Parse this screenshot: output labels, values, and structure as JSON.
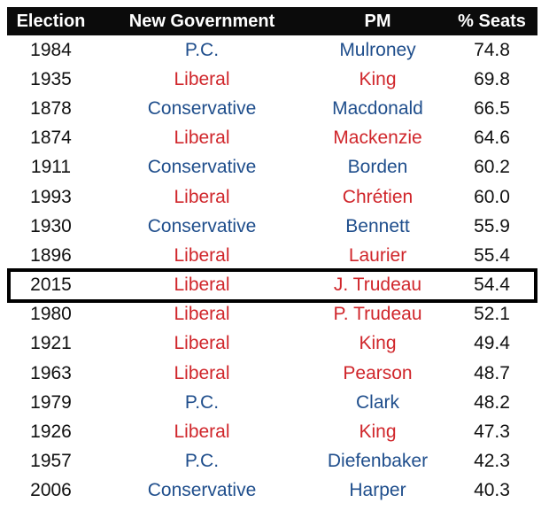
{
  "colors": {
    "liberal": "#d0262b",
    "conservative": "#1f4e8c",
    "header_bg": "#0b0b0b"
  },
  "headers": [
    "Election",
    "New Government",
    "PM",
    "% Seats"
  ],
  "rows": [
    {
      "year": "1984",
      "government": "P.C.",
      "pm": "Mulroney",
      "seats": "74.8",
      "party": "blue"
    },
    {
      "year": "1935",
      "government": "Liberal",
      "pm": "King",
      "seats": "69.8",
      "party": "red"
    },
    {
      "year": "1878",
      "government": "Conservative",
      "pm": "Macdonald",
      "seats": "66.5",
      "party": "blue"
    },
    {
      "year": "1874",
      "government": "Liberal",
      "pm": "Mackenzie",
      "seats": "64.6",
      "party": "red"
    },
    {
      "year": "1911",
      "government": "Conservative",
      "pm": "Borden",
      "seats": "60.2",
      "party": "blue"
    },
    {
      "year": "1993",
      "government": "Liberal",
      "pm": "Chrétien",
      "seats": "60.0",
      "party": "red"
    },
    {
      "year": "1930",
      "government": "Conservative",
      "pm": "Bennett",
      "seats": "55.9",
      "party": "blue"
    },
    {
      "year": "1896",
      "government": "Liberal",
      "pm": "Laurier",
      "seats": "55.4",
      "party": "red"
    },
    {
      "year": "2015",
      "government": "Liberal",
      "pm": "J. Trudeau",
      "seats": "54.4",
      "party": "red",
      "highlighted": true
    },
    {
      "year": "1980",
      "government": "Liberal",
      "pm": "P. Trudeau",
      "seats": "52.1",
      "party": "red"
    },
    {
      "year": "1921",
      "government": "Liberal",
      "pm": "King",
      "seats": "49.4",
      "party": "red"
    },
    {
      "year": "1963",
      "government": "Liberal",
      "pm": "Pearson",
      "seats": "48.7",
      "party": "red"
    },
    {
      "year": "1979",
      "government": "P.C.",
      "pm": "Clark",
      "seats": "48.2",
      "party": "blue"
    },
    {
      "year": "1926",
      "government": "Liberal",
      "pm": "King",
      "seats": "47.3",
      "party": "red"
    },
    {
      "year": "1957",
      "government": "P.C.",
      "pm": "Diefenbaker",
      "seats": "42.3",
      "party": "blue"
    },
    {
      "year": "2006",
      "government": "Conservative",
      "pm": "Harper",
      "seats": "40.3",
      "party": "blue"
    }
  ]
}
